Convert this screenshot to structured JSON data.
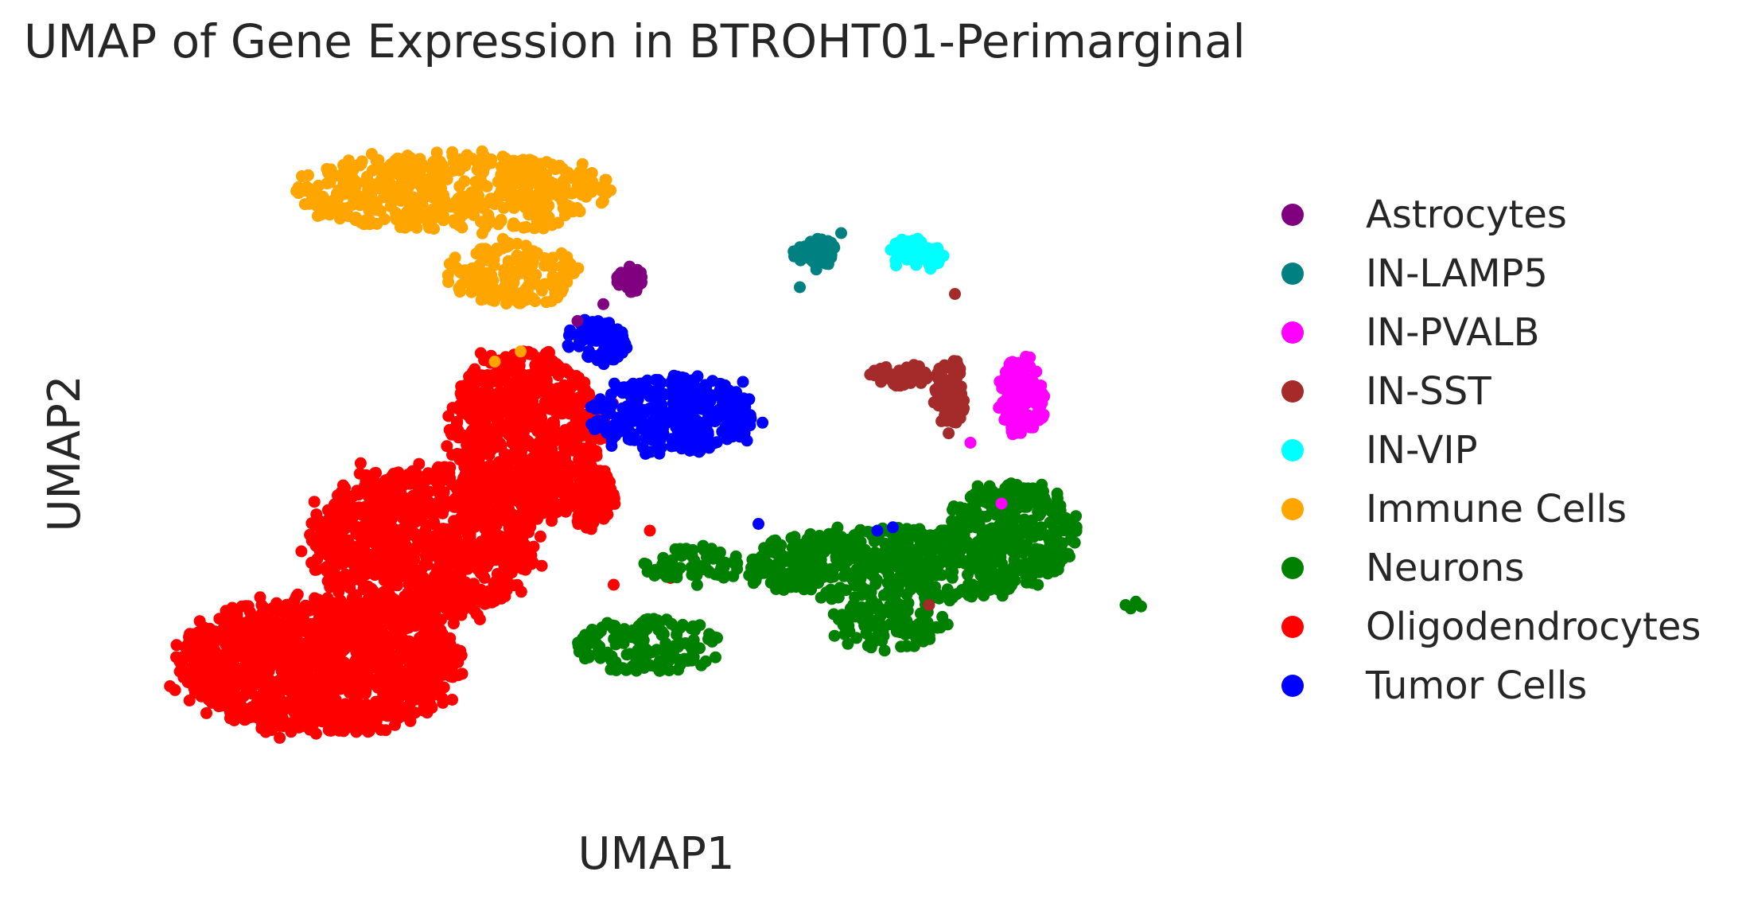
{
  "chart_data": {
    "type": "scatter",
    "title": "UMAP of Gene Expression in BTROHT01-Perimarginal",
    "xlabel": "UMAP1",
    "ylabel": "UMAP2",
    "xlim": [
      0,
      100
    ],
    "ylim": [
      0,
      100
    ],
    "grid": false,
    "legend_position": "right",
    "series": [
      {
        "name": "Astrocytes",
        "color": "#800080",
        "clusters": [
          {
            "cx": 47,
            "cy": 75,
            "rx": 1.4,
            "ry": 2.5,
            "n": 40
          }
        ],
        "points": [
          [
            44.5,
            71.5
          ],
          [
            42,
            69
          ]
        ]
      },
      {
        "name": "IN-LAMP5",
        "color": "#008080",
        "clusters": [
          {
            "cx": 65,
            "cy": 79,
            "rx": 2.3,
            "ry": 2.5,
            "n": 45
          }
        ],
        "points": [
          [
            67.5,
            82
          ],
          [
            63.5,
            74
          ]
        ]
      },
      {
        "name": "IN-PVALB",
        "color": "#ff00ff",
        "clusters": [
          {
            "cx": 85,
            "cy": 58,
            "rx": 2.5,
            "ry": 6.5,
            "n": 130
          }
        ],
        "points": [
          [
            80,
            51
          ],
          [
            83,
            42
          ]
        ]
      },
      {
        "name": "IN-SST",
        "color": "#a52a2a",
        "clusters": [
          {
            "cx": 78,
            "cy": 58,
            "rx": 1.6,
            "ry": 6.5,
            "n": 80
          },
          {
            "cx": 73,
            "cy": 61,
            "rx": 3.5,
            "ry": 1.8,
            "n": 40
          }
        ],
        "points": [
          [
            78.5,
            73
          ],
          [
            76,
            27
          ]
        ]
      },
      {
        "name": "IN-VIP",
        "color": "#00ffff",
        "clusters": [
          {
            "cx": 75,
            "cy": 79,
            "rx": 3,
            "ry": 3,
            "n": 55
          }
        ],
        "points": []
      },
      {
        "name": "Immune Cells",
        "color": "#ffa500",
        "clusters": [
          {
            "cx": 30,
            "cy": 88,
            "rx": 17,
            "ry": 6.5,
            "n": 520
          },
          {
            "cx": 36,
            "cy": 76,
            "rx": 7,
            "ry": 5,
            "n": 160
          }
        ],
        "points": [
          [
            34,
            63
          ],
          [
            36.5,
            64.5
          ]
        ]
      },
      {
        "name": "Neurons",
        "color": "#008000",
        "clusters": [
          {
            "cx": 73,
            "cy": 33,
            "rx": 17,
            "ry": 6,
            "n": 520
          },
          {
            "cx": 84,
            "cy": 38,
            "rx": 7,
            "ry": 8,
            "n": 260
          },
          {
            "cx": 49,
            "cy": 21,
            "rx": 8,
            "ry": 4.5,
            "n": 150
          },
          {
            "cx": 53,
            "cy": 33,
            "rx": 5,
            "ry": 3,
            "n": 60
          },
          {
            "cx": 72,
            "cy": 24,
            "rx": 6,
            "ry": 4,
            "n": 120
          }
        ],
        "points": [
          [
            95,
            27
          ],
          [
            96,
            27.5
          ],
          [
            95.5,
            26.5
          ],
          [
            96.5,
            26.8
          ]
        ]
      },
      {
        "name": "Oligodendrocytes",
        "color": "#ff0000",
        "clusters": [
          {
            "cx": 17,
            "cy": 18,
            "rx": 15,
            "ry": 11,
            "n": 1300
          },
          {
            "cx": 27,
            "cy": 36,
            "rx": 12,
            "ry": 13,
            "n": 1000
          },
          {
            "cx": 37,
            "cy": 52,
            "rx": 8,
            "ry": 14,
            "n": 700
          },
          {
            "cx": 43,
            "cy": 43,
            "rx": 3,
            "ry": 5,
            "n": 100
          }
        ],
        "points": [
          [
            45.5,
            30
          ],
          [
            44,
            21
          ],
          [
            49,
            38
          ],
          [
            51,
            31
          ]
        ]
      },
      {
        "name": "Tumor Cells",
        "color": "#0000ff",
        "clusters": [
          {
            "cx": 51,
            "cy": 55,
            "rx": 9,
            "ry": 6.5,
            "n": 330
          },
          {
            "cx": 44,
            "cy": 66,
            "rx": 3.2,
            "ry": 3.5,
            "n": 80
          }
        ],
        "points": [
          [
            58,
            60
          ],
          [
            58,
            57
          ],
          [
            57,
            52
          ],
          [
            59.5,
            39
          ],
          [
            71,
            38
          ],
          [
            72.5,
            38.5
          ],
          [
            49,
            52
          ]
        ]
      }
    ]
  }
}
